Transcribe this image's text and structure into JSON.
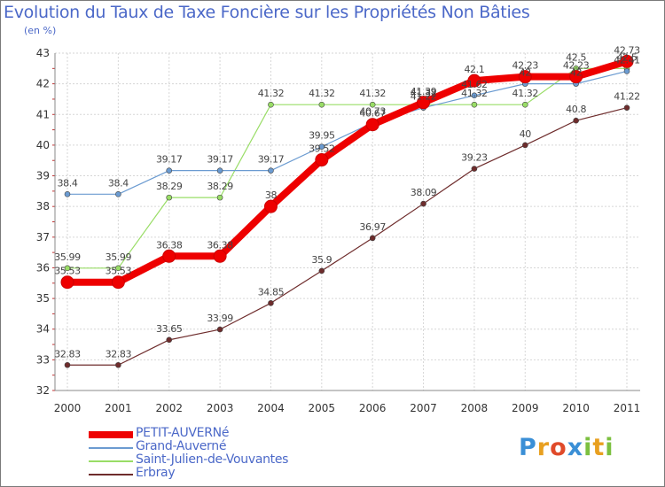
{
  "chart_data": {
    "type": "line",
    "title": "Evolution du Taux de Taxe Foncière sur les Propriétés Non Bâties",
    "ylabel": "(en %)",
    "xlabel": "",
    "x": [
      "2000",
      "2001",
      "2002",
      "2003",
      "2004",
      "2005",
      "2006",
      "2007",
      "2008",
      "2009",
      "2010",
      "2011"
    ],
    "ylim": [
      32,
      43
    ],
    "yticks": [
      32,
      33,
      34,
      35,
      36,
      37,
      38,
      39,
      40,
      41,
      42,
      43
    ],
    "grid": true,
    "legend_position": "bottom-left",
    "series": [
      {
        "name": "PETIT-AUVERNé",
        "color": "#ee0000",
        "values": [
          35.53,
          35.53,
          36.38,
          36.38,
          38,
          39.52,
          40.67,
          41.39,
          42.1,
          42.23,
          42.23,
          42.73
        ],
        "labels": [
          "35.53",
          "35.53",
          "36.38",
          "36.38",
          "38",
          "39.52",
          "40.67",
          "41.39",
          "42.1",
          "42.23",
          "42.23",
          "42.73"
        ]
      },
      {
        "name": "Grand-Auverné",
        "color": "#6b9bd1",
        "values": [
          38.4,
          38.4,
          39.17,
          39.17,
          39.17,
          39.95,
          40.73,
          41.22,
          41.62,
          42,
          42,
          42.41
        ],
        "labels": [
          "38.4",
          "38.4",
          "39.17",
          "39.17",
          "39.17",
          "39.95",
          "40.73",
          "41.22",
          "41.62",
          "42",
          "42",
          "42.41"
        ]
      },
      {
        "name": "Saint-Julien-de-Vouvantes",
        "color": "#99dd66",
        "values": [
          35.99,
          35.99,
          38.29,
          38.29,
          41.32,
          41.32,
          41.32,
          41.32,
          41.32,
          41.32,
          42.5,
          42.5
        ],
        "labels": [
          "35.99",
          "35.99",
          "38.29",
          "38.29",
          "41.32",
          "41.32",
          "41.32",
          "41.32",
          "41.32",
          "41.32",
          "42.5",
          "42.5"
        ]
      },
      {
        "name": "Erbray",
        "color": "#6e2c2c",
        "values": [
          32.83,
          32.83,
          33.65,
          33.99,
          34.85,
          35.9,
          36.97,
          38.09,
          39.23,
          40,
          40.8,
          41.22
        ],
        "labels": [
          "32.83",
          "32.83",
          "33.65",
          "33.99",
          "34.85",
          "35.9",
          "36.97",
          "38.09",
          "39.23",
          "40",
          "40.8",
          "41.22"
        ]
      }
    ]
  },
  "logo": {
    "letters": [
      "P",
      "r",
      "o",
      "x",
      "i",
      "t",
      "i"
    ],
    "colors": [
      "#3a8fd6",
      "#e8a020",
      "#e04a2a",
      "#3a8fd6",
      "#7cc040",
      "#e8a020",
      "#7cc040"
    ]
  }
}
